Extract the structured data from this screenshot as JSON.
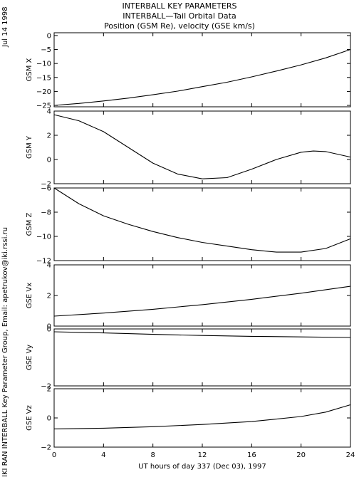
{
  "header": {
    "title": "INTERBALL KEY PARAMETERS",
    "subtitle": "INTERBALL—Tail Orbital Data",
    "subtitle2": "Position (GSM Re), velocity (GSE km/s)"
  },
  "side": {
    "date": "Jul 14 1998",
    "credit": "IKI RAN INTERBALL Key Parameter Group, Email: apetrukov@iki.rssi.ru"
  },
  "chart_data": [
    {
      "type": "line",
      "ylabel": "GSM X",
      "ylim": [
        -25.5,
        1
      ],
      "yticks": [
        0,
        -5,
        -10,
        -15,
        -20,
        -25
      ],
      "x": [
        0,
        2,
        4,
        6,
        8,
        10,
        12,
        14,
        16,
        18,
        20,
        22,
        24
      ],
      "series": [
        {
          "values": [
            -25.0,
            -24.3,
            -23.4,
            -22.4,
            -21.2,
            -19.9,
            -18.3,
            -16.7,
            -14.8,
            -12.7,
            -10.5,
            -8.0,
            -5.0
          ]
        }
      ]
    },
    {
      "type": "line",
      "ylabel": "GSM Y",
      "ylim": [
        -2,
        4
      ],
      "yticks": [
        4,
        2,
        0,
        -2
      ],
      "x": [
        0,
        2,
        4,
        6,
        8,
        10,
        12,
        14,
        16,
        18,
        20,
        21,
        22,
        24
      ],
      "series": [
        {
          "values": [
            3.7,
            3.2,
            2.3,
            1.0,
            -0.3,
            -1.2,
            -1.6,
            -1.5,
            -0.8,
            0.0,
            0.6,
            0.7,
            0.65,
            0.2
          ]
        }
      ]
    },
    {
      "type": "line",
      "ylabel": "GSM Z",
      "ylim": [
        -12,
        -6
      ],
      "yticks": [
        -6,
        -8,
        -10,
        -12
      ],
      "x": [
        0,
        2,
        4,
        6,
        8,
        10,
        12,
        14,
        16,
        18,
        20,
        22,
        24
      ],
      "series": [
        {
          "values": [
            -6.0,
            -7.3,
            -8.3,
            -9.0,
            -9.6,
            -10.1,
            -10.5,
            -10.8,
            -11.1,
            -11.3,
            -11.3,
            -11.0,
            -10.2
          ]
        }
      ]
    },
    {
      "type": "line",
      "ylabel": "GSE Vx",
      "ylim": [
        0,
        4
      ],
      "yticks": [
        4,
        2,
        0
      ],
      "x": [
        0,
        4,
        8,
        12,
        16,
        20,
        24
      ],
      "series": [
        {
          "values": [
            0.65,
            0.85,
            1.1,
            1.4,
            1.75,
            2.15,
            2.6
          ]
        }
      ]
    },
    {
      "type": "line",
      "ylabel": "GSE Vy",
      "ylim": [
        -2,
        0
      ],
      "yticks": [
        0,
        -2
      ],
      "x": [
        0,
        4,
        8,
        12,
        16,
        20,
        24
      ],
      "series": [
        {
          "values": [
            -0.1,
            -0.14,
            -0.19,
            -0.23,
            -0.26,
            -0.28,
            -0.3
          ]
        }
      ]
    },
    {
      "type": "line",
      "ylabel": "GSE Vz",
      "ylim": [
        -2,
        2
      ],
      "yticks": [
        2,
        0,
        -2
      ],
      "x": [
        0,
        4,
        8,
        12,
        16,
        20,
        22,
        24
      ],
      "series": [
        {
          "values": [
            -0.75,
            -0.7,
            -0.6,
            -0.45,
            -0.25,
            0.1,
            0.4,
            0.9
          ]
        }
      ]
    }
  ],
  "xaxis": {
    "label": "UT hours of day 337 (Dec 03), 1997",
    "range": [
      0,
      24
    ],
    "ticks": [
      0,
      4,
      8,
      12,
      16,
      20,
      24
    ]
  }
}
